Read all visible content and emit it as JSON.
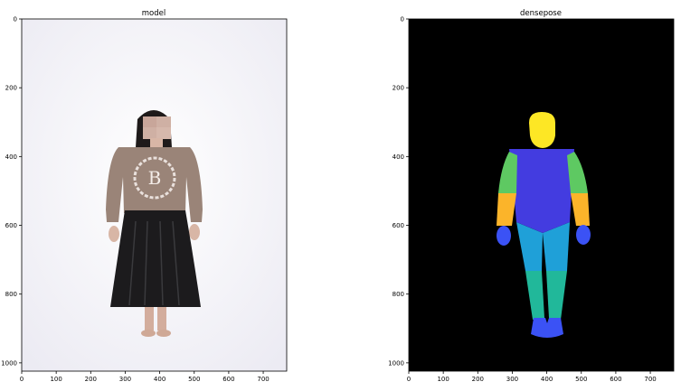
{
  "panels": [
    {
      "title": "model",
      "xticks": [
        "0",
        "100",
        "200",
        "300",
        "400",
        "500",
        "600",
        "700"
      ],
      "yticks": [
        "0",
        "200",
        "400",
        "600",
        "800",
        "1000"
      ]
    },
    {
      "title": "densepose",
      "xticks": [
        "0",
        "100",
        "200",
        "300",
        "400",
        "500",
        "600",
        "700"
      ],
      "yticks": [
        "0",
        "200",
        "400",
        "600",
        "800",
        "1000"
      ]
    }
  ],
  "image": {
    "width": 768,
    "height": 1024
  },
  "photo": {
    "sweater_text": "PRINCIPLE",
    "sweater_letter": "B"
  },
  "colors": {
    "head": "#fde725",
    "torso": "#433ce0",
    "upper_arm": "#5ec962",
    "lower_arm": "#fbb42a",
    "hand": "#3b52f5",
    "upper_leg": "#1fa0d8",
    "lower_leg": "#21b89a",
    "foot": "#3b52f5",
    "background": "#000000"
  }
}
